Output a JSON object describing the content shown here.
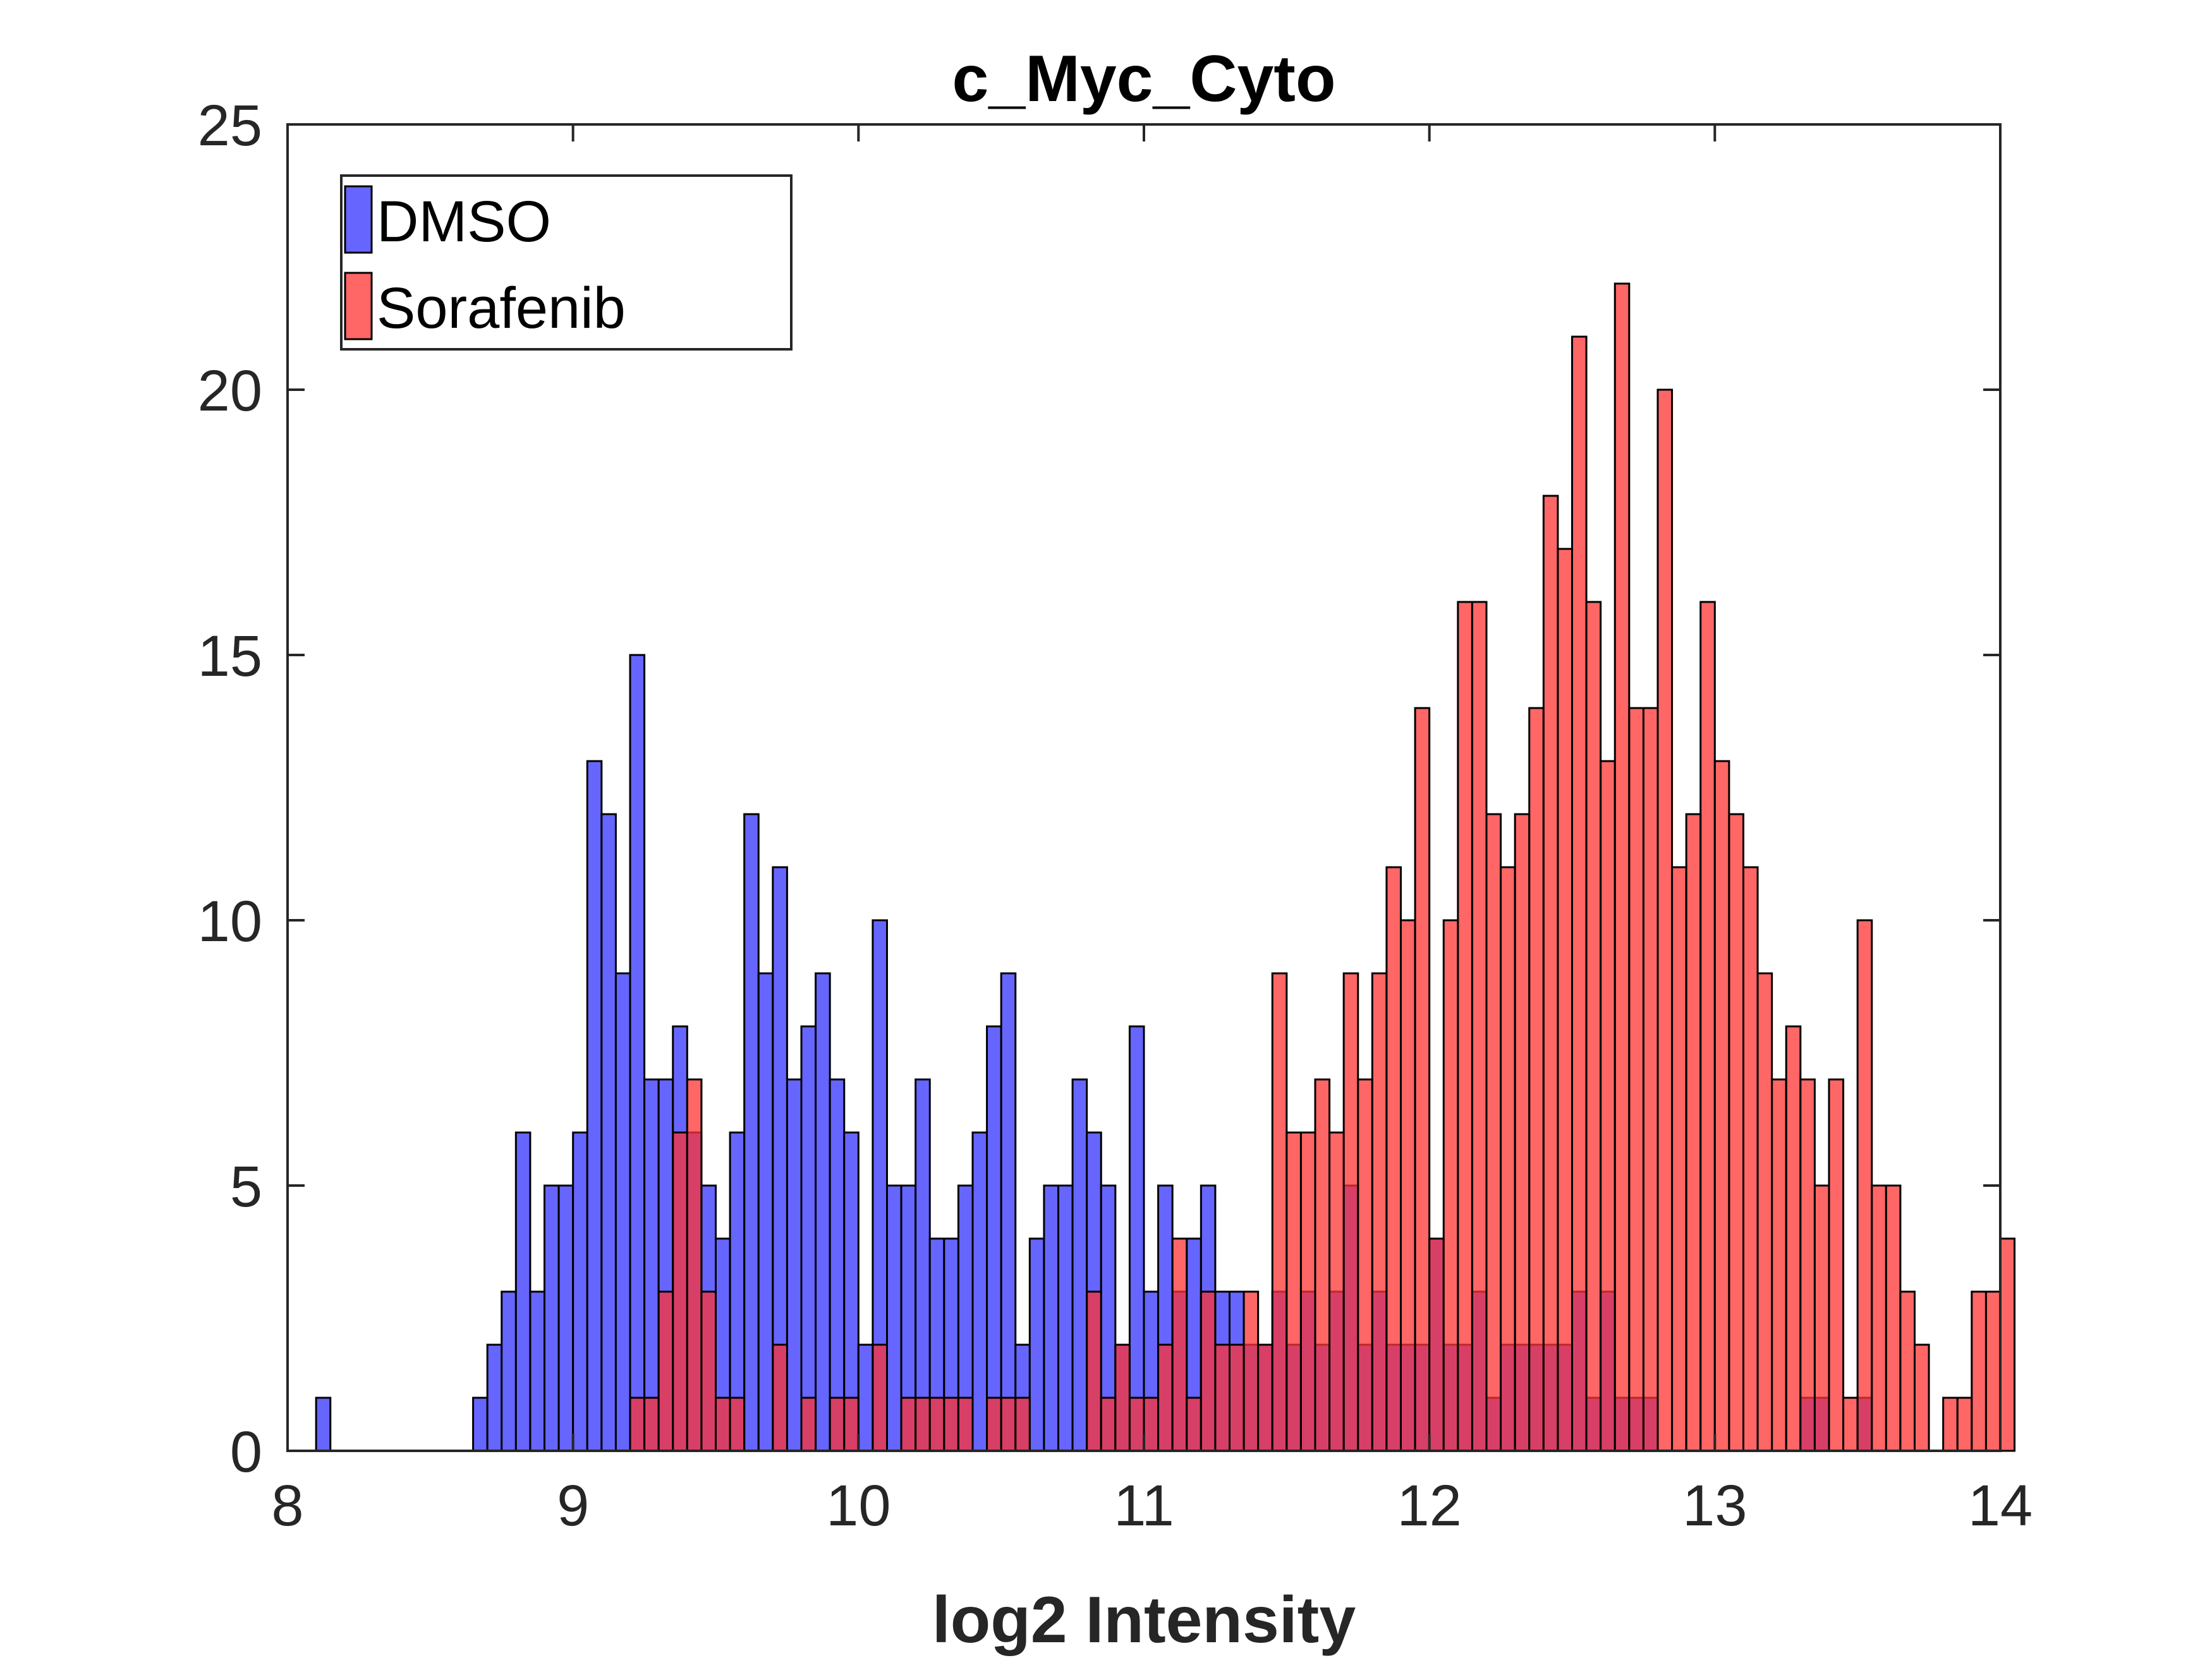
{
  "chart_data": {
    "type": "histogram",
    "title": "c_Myc_Cyto",
    "xlabel": "log2 Intensity",
    "ylabel": "",
    "xlim": [
      8,
      14
    ],
    "ylim": [
      0,
      25
    ],
    "xticks": [
      "8",
      "9",
      "10",
      "11",
      "12",
      "13",
      "14"
    ],
    "yticks": [
      "0",
      "5",
      "10",
      "15",
      "20",
      "25"
    ],
    "legend_position": "top-left",
    "grid": false,
    "bin_width": 0.05,
    "series": [
      {
        "name": "DMSO",
        "color": "#6666ff",
        "opacity": 1.0,
        "bins": [
          [
            8.1,
            1
          ],
          [
            8.65,
            1
          ],
          [
            8.7,
            2
          ],
          [
            8.75,
            3
          ],
          [
            8.8,
            6
          ],
          [
            8.85,
            3
          ],
          [
            8.9,
            5
          ],
          [
            8.95,
            5
          ],
          [
            9.0,
            6
          ],
          [
            9.05,
            13
          ],
          [
            9.1,
            12
          ],
          [
            9.15,
            9
          ],
          [
            9.2,
            15
          ],
          [
            9.25,
            7
          ],
          [
            9.3,
            7
          ],
          [
            9.35,
            8
          ],
          [
            9.4,
            6
          ],
          [
            9.45,
            5
          ],
          [
            9.5,
            4
          ],
          [
            9.55,
            6
          ],
          [
            9.6,
            12
          ],
          [
            9.65,
            9
          ],
          [
            9.7,
            11
          ],
          [
            9.75,
            7
          ],
          [
            9.8,
            8
          ],
          [
            9.85,
            9
          ],
          [
            9.9,
            7
          ],
          [
            9.95,
            6
          ],
          [
            10.0,
            2
          ],
          [
            10.05,
            10
          ],
          [
            10.1,
            5
          ],
          [
            10.15,
            5
          ],
          [
            10.2,
            7
          ],
          [
            10.25,
            4
          ],
          [
            10.3,
            4
          ],
          [
            10.35,
            5
          ],
          [
            10.4,
            6
          ],
          [
            10.45,
            8
          ],
          [
            10.5,
            9
          ],
          [
            10.55,
            2
          ],
          [
            10.6,
            4
          ],
          [
            10.65,
            5
          ],
          [
            10.7,
            5
          ],
          [
            10.75,
            7
          ],
          [
            10.8,
            6
          ],
          [
            10.85,
            5
          ],
          [
            10.9,
            2
          ],
          [
            10.95,
            8
          ],
          [
            11.0,
            3
          ],
          [
            11.05,
            5
          ],
          [
            11.1,
            3
          ],
          [
            11.15,
            4
          ],
          [
            11.2,
            5
          ],
          [
            11.25,
            3
          ],
          [
            11.3,
            3
          ],
          [
            11.35,
            2
          ],
          [
            11.4,
            2
          ],
          [
            11.45,
            3
          ],
          [
            11.5,
            2
          ],
          [
            11.55,
            3
          ],
          [
            11.6,
            2
          ],
          [
            11.65,
            3
          ],
          [
            11.7,
            5
          ],
          [
            11.75,
            2
          ],
          [
            11.8,
            3
          ],
          [
            11.85,
            2
          ],
          [
            11.9,
            2
          ],
          [
            11.95,
            2
          ],
          [
            12.0,
            4
          ],
          [
            12.05,
            2
          ],
          [
            12.1,
            2
          ],
          [
            12.15,
            3
          ],
          [
            12.2,
            1
          ],
          [
            12.25,
            2
          ],
          [
            12.3,
            2
          ],
          [
            12.35,
            2
          ],
          [
            12.4,
            2
          ],
          [
            12.45,
            2
          ],
          [
            12.5,
            3
          ],
          [
            12.55,
            1
          ],
          [
            12.6,
            3
          ],
          [
            12.65,
            1
          ],
          [
            12.7,
            1
          ],
          [
            12.75,
            1
          ],
          [
            13.3,
            1
          ],
          [
            13.35,
            1
          ],
          [
            13.5,
            1
          ]
        ]
      },
      {
        "name": "Sorafenib",
        "color": "#ff3333",
        "opacity": 0.75,
        "bins": [
          [
            9.2,
            1
          ],
          [
            9.25,
            1
          ],
          [
            9.3,
            3
          ],
          [
            9.35,
            6
          ],
          [
            9.4,
            7
          ],
          [
            9.45,
            3
          ],
          [
            9.5,
            1
          ],
          [
            9.55,
            1
          ],
          [
            9.7,
            2
          ],
          [
            9.8,
            1
          ],
          [
            9.9,
            1
          ],
          [
            9.95,
            1
          ],
          [
            10.05,
            2
          ],
          [
            10.15,
            1
          ],
          [
            10.2,
            1
          ],
          [
            10.25,
            1
          ],
          [
            10.3,
            1
          ],
          [
            10.35,
            1
          ],
          [
            10.45,
            1
          ],
          [
            10.5,
            1
          ],
          [
            10.55,
            1
          ],
          [
            10.8,
            3
          ],
          [
            10.85,
            1
          ],
          [
            10.9,
            2
          ],
          [
            10.95,
            1
          ],
          [
            11.0,
            1
          ],
          [
            11.05,
            2
          ],
          [
            11.1,
            4
          ],
          [
            11.15,
            1
          ],
          [
            11.2,
            3
          ],
          [
            11.25,
            2
          ],
          [
            11.3,
            2
          ],
          [
            11.35,
            3
          ],
          [
            11.4,
            2
          ],
          [
            11.45,
            9
          ],
          [
            11.5,
            6
          ],
          [
            11.55,
            6
          ],
          [
            11.6,
            7
          ],
          [
            11.65,
            6
          ],
          [
            11.7,
            9
          ],
          [
            11.75,
            7
          ],
          [
            11.8,
            9
          ],
          [
            11.85,
            11
          ],
          [
            11.9,
            10
          ],
          [
            11.95,
            14
          ],
          [
            12.0,
            4
          ],
          [
            12.05,
            10
          ],
          [
            12.1,
            16
          ],
          [
            12.15,
            16
          ],
          [
            12.2,
            12
          ],
          [
            12.25,
            11
          ],
          [
            12.3,
            12
          ],
          [
            12.35,
            14
          ],
          [
            12.4,
            18
          ],
          [
            12.45,
            17
          ],
          [
            12.5,
            21
          ],
          [
            12.55,
            16
          ],
          [
            12.6,
            13
          ],
          [
            12.65,
            22
          ],
          [
            12.7,
            14
          ],
          [
            12.75,
            14
          ],
          [
            12.8,
            20
          ],
          [
            12.85,
            11
          ],
          [
            12.9,
            12
          ],
          [
            12.95,
            16
          ],
          [
            13.0,
            13
          ],
          [
            13.05,
            12
          ],
          [
            13.1,
            11
          ],
          [
            13.15,
            9
          ],
          [
            13.2,
            7
          ],
          [
            13.25,
            8
          ],
          [
            13.3,
            7
          ],
          [
            13.35,
            5
          ],
          [
            13.4,
            7
          ],
          [
            13.45,
            1
          ],
          [
            13.5,
            10
          ],
          [
            13.55,
            5
          ],
          [
            13.6,
            5
          ],
          [
            13.65,
            3
          ],
          [
            13.7,
            2
          ],
          [
            13.8,
            1
          ],
          [
            13.85,
            1
          ],
          [
            13.9,
            3
          ],
          [
            13.95,
            3
          ],
          [
            14.0,
            4
          ]
        ]
      }
    ]
  }
}
